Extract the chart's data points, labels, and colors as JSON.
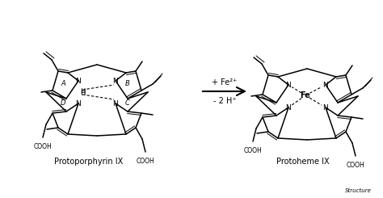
{
  "bg_color": "#ffffff",
  "label_left": "Protoporphyrin IX",
  "label_right": "Protoheme IX",
  "label_source": "Structure",
  "reaction_top": "+ Fe²⁺",
  "reaction_bottom": "- 2 H⁺",
  "fig_width": 4.74,
  "fig_height": 2.45,
  "dpi": 100
}
